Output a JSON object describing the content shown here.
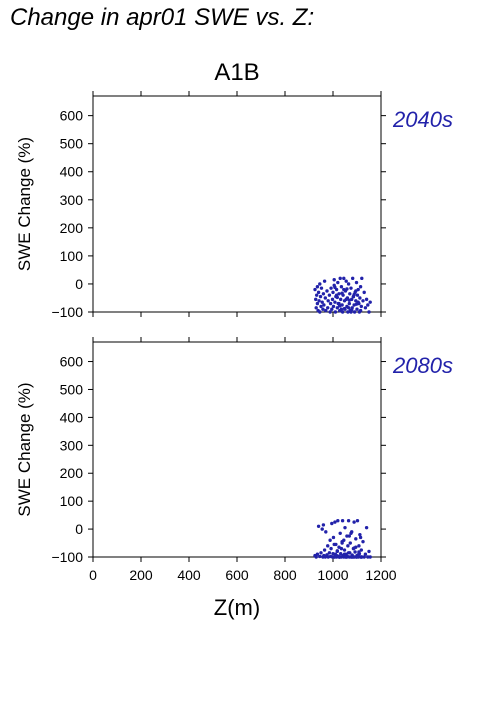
{
  "page_title": "Change in apr01 SWE vs. Z:",
  "chart_data": {
    "type": "scatter",
    "title": "A1B",
    "xlabel": "Z(m)",
    "ylabel": "SWE Change (%)",
    "xlim": [
      0,
      1200
    ],
    "ylim": [
      -100,
      670
    ],
    "x_ticks": [
      0,
      200,
      400,
      600,
      800,
      1000,
      1200
    ],
    "y_ticks": [
      -100,
      0,
      100,
      200,
      300,
      400,
      500,
      600
    ],
    "grid": false,
    "marker_color": "#2222aa",
    "panels": [
      {
        "label": "2040s",
        "x": [
          925,
          928,
          930,
          932,
          935,
          935,
          938,
          940,
          942,
          945,
          945,
          948,
          950,
          952,
          955,
          958,
          960,
          962,
          965,
          968,
          970,
          975,
          978,
          980,
          985,
          988,
          990,
          992,
          995,
          998,
          1000,
          1002,
          1005,
          1008,
          1010,
          1012,
          1015,
          1018,
          1020,
          1022,
          1025,
          1028,
          1030,
          1032,
          1035,
          1038,
          1040,
          1042,
          1045,
          1048,
          1050,
          1052,
          1055,
          1058,
          1060,
          1062,
          1065,
          1068,
          1070,
          1072,
          1075,
          1078,
          1080,
          1082,
          1085,
          1088,
          1090,
          1092,
          1095,
          1098,
          1100,
          1102,
          1105,
          1108,
          1110,
          1112,
          1115,
          1118,
          1120,
          1125,
          1130,
          1135,
          1140,
          1145,
          1150,
          1155,
          1005,
          1015,
          1025,
          1035,
          1045,
          1055,
          1065,
          1075,
          1085,
          1095,
          1105,
          1115,
          1008,
          1018,
          1028,
          1038,
          1048,
          1058,
          1068,
          1078,
          1088,
          1098
        ],
        "y": [
          -20,
          -55,
          -85,
          -40,
          -10,
          -70,
          -95,
          -30,
          -60,
          0,
          -100,
          -45,
          -80,
          -15,
          -65,
          -90,
          -35,
          -75,
          10,
          -50,
          -95,
          -25,
          -85,
          -60,
          -40,
          -100,
          -70,
          -15,
          -90,
          -55,
          -30,
          -80,
          15,
          -65,
          -100,
          -45,
          -20,
          -85,
          5,
          -70,
          -35,
          -95,
          20,
          -55,
          -10,
          -75,
          -100,
          -40,
          20,
          -60,
          -90,
          -25,
          10,
          -80,
          -50,
          -100,
          0,
          -70,
          -35,
          -95,
          -15,
          -55,
          -85,
          20,
          -45,
          -75,
          -100,
          -30,
          -60,
          5,
          -90,
          -40,
          -20,
          -70,
          -100,
          -50,
          -10,
          -80,
          20,
          -60,
          -30,
          -85,
          -55,
          -75,
          -100,
          -65,
          -5,
          -40,
          -70,
          -90,
          -20,
          -55,
          -85,
          -100,
          -45,
          -25,
          -65,
          -95,
          -12,
          -48,
          -78,
          -33,
          -88,
          -18,
          -58,
          -92,
          -38,
          -72
        ]
      },
      {
        "label": "2080s",
        "x": [
          925,
          930,
          935,
          940,
          945,
          950,
          955,
          958,
          960,
          962,
          965,
          968,
          970,
          975,
          978,
          980,
          985,
          988,
          990,
          992,
          995,
          998,
          1000,
          1002,
          1005,
          1008,
          1010,
          1012,
          1015,
          1018,
          1020,
          1022,
          1025,
          1028,
          1030,
          1032,
          1035,
          1038,
          1040,
          1042,
          1045,
          1048,
          1050,
          1052,
          1055,
          1058,
          1060,
          1062,
          1065,
          1068,
          1070,
          1072,
          1075,
          1078,
          1080,
          1082,
          1085,
          1088,
          1090,
          1092,
          1095,
          1098,
          1100,
          1102,
          1105,
          1108,
          1110,
          1112,
          1115,
          1118,
          1120,
          1125,
          1130,
          1135,
          1140,
          1145,
          1150,
          1155,
          1005,
          1015,
          1025,
          1035,
          1045,
          1055,
          1065,
          1075,
          1085,
          1095,
          1105,
          1115,
          1008,
          1018,
          1028,
          1038,
          1048,
          1058,
          1068,
          1078,
          1088,
          1098,
          1108,
          1118
        ],
        "y": [
          -95,
          -100,
          -90,
          10,
          -98,
          -85,
          0,
          -100,
          15,
          -95,
          -75,
          -100,
          -10,
          -92,
          -60,
          -100,
          -85,
          -40,
          -98,
          -70,
          20,
          -100,
          -88,
          -30,
          -100,
          25,
          -90,
          -55,
          -100,
          -80,
          30,
          -97,
          -65,
          -100,
          -15,
          -88,
          -100,
          -45,
          30,
          -95,
          -100,
          -75,
          5,
          -100,
          -90,
          -25,
          -98,
          -60,
          30,
          -100,
          -85,
          -50,
          -100,
          -10,
          -93,
          -100,
          -70,
          25,
          -100,
          -82,
          -35,
          -100,
          -95,
          30,
          -100,
          -60,
          -88,
          -20,
          -100,
          -75,
          -100,
          -45,
          -100,
          -90,
          5,
          -100,
          -80,
          -100,
          -55,
          -95,
          -100,
          -70,
          -40,
          -100,
          -85,
          -15,
          -100,
          -65,
          -92,
          -30,
          -100,
          -78,
          -100,
          -50,
          -90,
          -100,
          -25,
          -100,
          -68,
          -100,
          -82,
          -100
        ]
      }
    ]
  }
}
